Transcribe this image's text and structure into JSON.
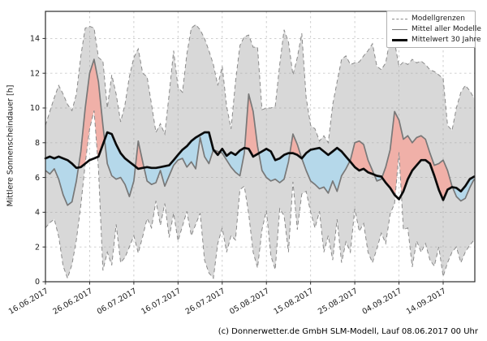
{
  "chart_data": {
    "type": "line",
    "title": "",
    "ylabel": "Mittlere Sonnenscheindauer [h]",
    "xlabel": "",
    "ylim": [
      0,
      15.5
    ],
    "yticks": [
      0,
      2,
      4,
      6,
      8,
      10,
      12,
      14
    ],
    "grid": "dashed both axes",
    "x_is_daily_from": "16.06.2017",
    "n_days": 98,
    "xtick_day_indices": [
      0,
      10,
      20,
      30,
      40,
      50,
      60,
      70,
      80,
      90
    ],
    "xtick_labels": [
      "16.06.2017",
      "26.06.2017",
      "06.07.2017",
      "16.07.2017",
      "26.07.2017",
      "05.08.2017",
      "15.08.2017",
      "25.08.2017",
      "04.09.2017",
      "14.09.2017"
    ],
    "series": [
      {
        "name": "Modellgrenzen (obere Grenze)",
        "role": "upper_bound",
        "style": "dashed-gray",
        "values": [
          9.0,
          9.8,
          10.6,
          11.3,
          10.8,
          10.2,
          9.85,
          10.8,
          13.0,
          14.6,
          14.7,
          14.6,
          12.9,
          12.7,
          10.0,
          11.9,
          10.8,
          9.2,
          10.2,
          11.8,
          12.9,
          13.4,
          12.0,
          11.8,
          10.2,
          8.6,
          9.1,
          8.5,
          10.8,
          13.3,
          11.2,
          10.9,
          13.1,
          14.6,
          14.8,
          14.5,
          14.0,
          13.3,
          12.5,
          11.3,
          12.4,
          10.1,
          8.8,
          11.5,
          13.6,
          14.1,
          14.2,
          13.5,
          13.5,
          9.9,
          10.0,
          10.0,
          10.1,
          12.5,
          14.5,
          13.8,
          11.9,
          12.9,
          14.3,
          10.6,
          9.0,
          8.8,
          8.1,
          8.4,
          8.0,
          10.2,
          11.5,
          12.8,
          13.0,
          12.5,
          12.6,
          12.65,
          13.0,
          13.3,
          13.7,
          12.4,
          12.2,
          12.6,
          14.0,
          13.8,
          12.4,
          12.65,
          12.5,
          12.8,
          12.6,
          12.7,
          12.5,
          12.2,
          12.1,
          11.9,
          11.7,
          9.0,
          8.7,
          10.0,
          10.9,
          11.3,
          11.0,
          10.55
        ]
      },
      {
        "name": "Modellgrenzen (untere Grenze)",
        "role": "lower_bound",
        "style": "dashed-gray",
        "values": [
          3.1,
          3.4,
          3.6,
          2.6,
          0.9,
          0.2,
          1.0,
          2.4,
          4.4,
          6.8,
          8.8,
          9.85,
          6.5,
          0.65,
          1.7,
          0.95,
          3.3,
          1.1,
          1.4,
          2.0,
          2.65,
          1.65,
          2.6,
          3.65,
          3.1,
          4.65,
          3.25,
          4.5,
          2.55,
          3.95,
          2.35,
          3.2,
          4.05,
          2.65,
          3.3,
          3.95,
          1.25,
          0.5,
          0.2,
          2.2,
          3.1,
          1.7,
          2.65,
          2.4,
          5.3,
          5.5,
          3.9,
          1.7,
          0.8,
          3.0,
          4.1,
          1.5,
          0.7,
          4.2,
          3.8,
          1.7,
          5.75,
          3.0,
          5.05,
          5.2,
          4.0,
          3.1,
          4.05,
          1.7,
          2.65,
          1.25,
          3.6,
          1.1,
          2.3,
          1.7,
          4.2,
          2.9,
          3.35,
          1.7,
          1.1,
          1.9,
          2.8,
          2.2,
          3.9,
          4.5,
          7.45,
          3.0,
          3.1,
          0.85,
          2.35,
          1.7,
          2.2,
          1.25,
          0.9,
          2.0,
          0.3,
          1.1,
          1.7,
          2.0,
          1.1,
          1.7,
          2.1,
          2.4
        ]
      },
      {
        "name": "Mittel aller Modelle",
        "role": "model_mean",
        "style": "solid-gray",
        "values": [
          6.4,
          6.2,
          6.5,
          5.9,
          5.0,
          4.4,
          4.6,
          5.8,
          7.5,
          10.0,
          12.0,
          12.8,
          11.5,
          9.0,
          6.8,
          6.1,
          5.9,
          6.0,
          5.6,
          4.9,
          5.8,
          8.1,
          6.9,
          5.8,
          5.6,
          5.7,
          6.4,
          5.5,
          6.1,
          6.7,
          7.0,
          7.1,
          6.6,
          6.9,
          6.5,
          8.3,
          7.2,
          6.8,
          7.6,
          7.5,
          7.4,
          7.0,
          6.6,
          6.3,
          6.1,
          7.4,
          10.8,
          9.8,
          7.8,
          6.4,
          6.0,
          5.8,
          5.9,
          5.7,
          5.9,
          6.9,
          8.5,
          7.9,
          7.1,
          6.4,
          5.8,
          5.6,
          5.35,
          5.45,
          5.1,
          5.8,
          5.2,
          6.1,
          6.5,
          7.0,
          8.0,
          8.1,
          7.9,
          7.0,
          6.4,
          5.8,
          5.9,
          6.6,
          7.6,
          9.8,
          9.3,
          8.2,
          8.4,
          8.0,
          8.3,
          8.4,
          8.2,
          7.4,
          6.7,
          6.8,
          7.0,
          6.4,
          5.5,
          4.9,
          4.65,
          4.8,
          5.4,
          5.9
        ]
      },
      {
        "name": "Mittelwert 30 Jahre",
        "role": "climate_mean_30y",
        "style": "solid-black-thick",
        "values": [
          7.1,
          7.2,
          7.1,
          7.2,
          7.1,
          7.0,
          6.8,
          6.55,
          6.6,
          6.8,
          7.0,
          7.1,
          7.2,
          7.9,
          8.6,
          8.5,
          7.9,
          7.4,
          7.1,
          6.9,
          6.7,
          6.5,
          6.55,
          6.6,
          6.55,
          6.55,
          6.6,
          6.65,
          6.7,
          7.0,
          7.3,
          7.6,
          7.8,
          8.1,
          8.3,
          8.45,
          8.6,
          8.6,
          7.6,
          7.3,
          7.65,
          7.25,
          7.45,
          7.3,
          7.55,
          7.7,
          7.65,
          7.2,
          7.35,
          7.5,
          7.65,
          7.5,
          7.0,
          7.1,
          7.3,
          7.4,
          7.4,
          7.3,
          7.1,
          7.4,
          7.6,
          7.65,
          7.7,
          7.5,
          7.3,
          7.5,
          7.7,
          7.5,
          7.2,
          6.9,
          6.6,
          6.4,
          6.5,
          6.3,
          6.2,
          6.1,
          6.05,
          5.7,
          5.4,
          5.0,
          4.75,
          5.2,
          5.9,
          6.4,
          6.7,
          7.0,
          7.0,
          6.8,
          6.1,
          5.3,
          4.7,
          5.3,
          5.45,
          5.4,
          5.2,
          5.5,
          5.9,
          6.05
        ]
      }
    ],
    "colors": {
      "band_fill": "#d9d9d9",
      "above_climate_fill": "#f0b0a8",
      "below_climate_fill": "#b5d8ea",
      "bound_line": "#8a8a8a",
      "model_mean_line": "#787878",
      "climate_line": "#0a0a0a",
      "grid": "#c9c9c9",
      "spine": "#2b2b2b"
    },
    "legend": {
      "position": "top-right",
      "items": [
        {
          "label": "Modellgrenzen",
          "sample": "dashed-gray-line"
        },
        {
          "label": "Mittel aller Modelle",
          "sample": "solid-gray-line"
        },
        {
          "label": "Mittelwert 30 Jahre",
          "sample": "thick-black-line"
        }
      ]
    },
    "footer": "(c) Donnerwetter.de GmbH SLM-Modell, Lauf 08.06.2017 00 Uhr"
  }
}
